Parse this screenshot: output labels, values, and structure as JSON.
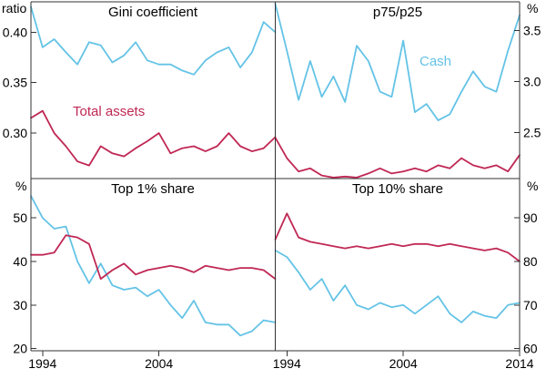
{
  "colors": {
    "cash": "#64C3E6",
    "total_assets": "#C02854",
    "frame": "#333333",
    "text": "#000000"
  },
  "axis_units": {
    "top_left": "ratio",
    "top_right": "%",
    "bottom_left": "%",
    "bottom_right": "%"
  },
  "x": {
    "years": [
      1993,
      1994,
      1995,
      1996,
      1997,
      1998,
      1999,
      2000,
      2001,
      2002,
      2003,
      2004,
      2005,
      2006,
      2007,
      2008,
      2009,
      2010,
      2011,
      2012,
      2013,
      2014
    ],
    "tick_labels": [
      "1994",
      "2004",
      "2014"
    ]
  },
  "chart_data": [
    {
      "type": "line",
      "id": "gini",
      "title": "Gini coefficient",
      "row": "top",
      "col": "left",
      "axis_side": "left",
      "ylabel": "ratio",
      "ylim": [
        0.255,
        0.43
      ],
      "yticks": [
        {
          "v": 0.3,
          "t": "0.30"
        },
        {
          "v": 0.35,
          "t": "0.35"
        },
        {
          "v": 0.4,
          "t": "0.40"
        }
      ],
      "series": [
        {
          "name": "Cash",
          "color_key": "cash",
          "values": [
            0.425,
            0.385,
            0.393,
            0.38,
            0.368,
            0.39,
            0.387,
            0.37,
            0.377,
            0.39,
            0.372,
            0.368,
            0.368,
            0.362,
            0.358,
            0.372,
            0.38,
            0.385,
            0.365,
            0.38,
            0.41,
            0.4
          ]
        },
        {
          "name": "Total assets",
          "color_key": "total_assets",
          "values": [
            0.315,
            0.322,
            0.3,
            0.287,
            0.272,
            0.268,
            0.287,
            0.28,
            0.277,
            0.285,
            0.292,
            0.3,
            0.28,
            0.285,
            0.287,
            0.282,
            0.287,
            0.3,
            0.287,
            0.282,
            0.285,
            0.296
          ]
        }
      ]
    },
    {
      "type": "line",
      "id": "p75p25",
      "title": "p75/p25",
      "row": "top",
      "col": "right",
      "axis_side": "right",
      "ylabel": "%",
      "ylim": [
        2.05,
        3.78
      ],
      "yticks": [
        {
          "v": 2.5,
          "t": "2.5"
        },
        {
          "v": 3.0,
          "t": "3.0"
        },
        {
          "v": 3.5,
          "t": "3.5"
        }
      ],
      "series": [
        {
          "name": "Cash",
          "color_key": "cash",
          "values": [
            3.76,
            3.3,
            2.82,
            3.2,
            2.85,
            3.05,
            2.8,
            3.35,
            3.2,
            2.9,
            2.85,
            3.4,
            2.7,
            2.78,
            2.62,
            2.68,
            2.9,
            3.1,
            2.95,
            2.9,
            3.3,
            3.65
          ]
        },
        {
          "name": "Total assets",
          "color_key": "total_assets",
          "values": [
            2.45,
            2.25,
            2.12,
            2.15,
            2.08,
            2.06,
            2.07,
            2.06,
            2.1,
            2.15,
            2.1,
            2.12,
            2.15,
            2.12,
            2.18,
            2.15,
            2.25,
            2.18,
            2.15,
            2.18,
            2.12,
            2.28
          ]
        }
      ]
    },
    {
      "type": "line",
      "id": "top1",
      "title": "Top 1% share",
      "row": "bottom",
      "col": "left",
      "axis_side": "left",
      "ylabel": "%",
      "ylim": [
        19.5,
        59
      ],
      "yticks": [
        {
          "v": 20,
          "t": "20"
        },
        {
          "v": 30,
          "t": "30"
        },
        {
          "v": 40,
          "t": "40"
        },
        {
          "v": 50,
          "t": "50"
        }
      ],
      "xticks": [
        {
          "v": 1994,
          "t": "1994"
        },
        {
          "v": 2004,
          "t": "2004"
        }
      ],
      "series": [
        {
          "name": "Cash",
          "color_key": "cash",
          "values": [
            55,
            50,
            47.5,
            48,
            40,
            35,
            39.5,
            34.5,
            33.5,
            34,
            32,
            33.5,
            30,
            27,
            31,
            26,
            25.5,
            25.5,
            23,
            24,
            26.5,
            26
          ]
        },
        {
          "name": "Total assets",
          "color_key": "total_assets",
          "values": [
            41.5,
            41.5,
            42,
            46,
            45.5,
            44,
            36,
            38,
            39.5,
            37,
            38,
            38.5,
            39,
            38.5,
            37.5,
            39,
            38.5,
            38,
            38.5,
            38.5,
            38,
            36
          ]
        }
      ]
    },
    {
      "type": "line",
      "id": "top10",
      "title": "Top 10% share",
      "row": "bottom",
      "col": "right",
      "axis_side": "right",
      "ylabel": "%",
      "ylim": [
        59.5,
        99
      ],
      "yticks": [
        {
          "v": 60,
          "t": "60"
        },
        {
          "v": 70,
          "t": "70"
        },
        {
          "v": 80,
          "t": "80"
        },
        {
          "v": 90,
          "t": "90"
        }
      ],
      "xticks": [
        {
          "v": 1994,
          "t": "1994"
        },
        {
          "v": 2004,
          "t": "2004"
        },
        {
          "v": 2014,
          "t": "2014"
        }
      ],
      "series": [
        {
          "name": "Cash",
          "color_key": "cash",
          "values": [
            82.5,
            81,
            77.5,
            73.5,
            76,
            71,
            74.5,
            70,
            69,
            70.5,
            69.5,
            70,
            68,
            70,
            72,
            68,
            66,
            68.5,
            67.5,
            67,
            70,
            70.5
          ]
        },
        {
          "name": "Total assets",
          "color_key": "total_assets",
          "values": [
            85,
            91,
            85.5,
            84.5,
            84,
            83.5,
            83,
            83.5,
            83,
            83.5,
            84,
            83.5,
            84,
            84,
            83.5,
            84,
            83.5,
            83,
            82.5,
            83,
            82,
            80
          ]
        }
      ]
    }
  ]
}
